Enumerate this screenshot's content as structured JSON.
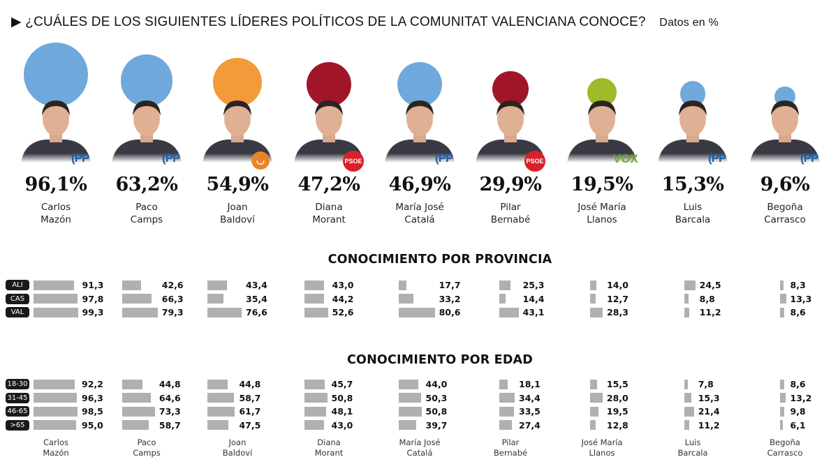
{
  "title": {
    "marker": "▶",
    "text": "¿CUÁLES DE LOS SIGUIENTES LÍDERES POLÍTICOS DE LA COMUNITAT VALENCIANA CONOCE?",
    "subtitle": "Datos en %"
  },
  "party_colors": {
    "PP": "#6fa8dc",
    "Compromis": "#f39a3a",
    "PSOE": "#a01628",
    "VOX": "#9dbb2a"
  },
  "chart_data": [
    {
      "type": "bubble",
      "title": "¿CUÁLES DE LOS SIGUIENTES LÍDERES POLÍTICOS DE LA COMUNITAT VALENCIANA CONOCE?",
      "unit": "%",
      "leaders": [
        {
          "first": "Carlos",
          "last": "Mazón",
          "party": "PP",
          "party_logo": "PP",
          "value": 96.1,
          "label": "96,1%"
        },
        {
          "first": "Paco",
          "last": "Camps",
          "party": "PP",
          "party_logo": "PP",
          "value": 63.2,
          "label": "63,2%"
        },
        {
          "first": "Joan",
          "last": "Baldoví",
          "party": "Compromis",
          "party_logo": "",
          "value": 54.9,
          "label": "54,9%"
        },
        {
          "first": "Diana",
          "last": "Morant",
          "party": "PSOE",
          "party_logo": "PSOE",
          "value": 47.2,
          "label": "47,2%"
        },
        {
          "first": "María José",
          "last": "Catalá",
          "party": "PP",
          "party_logo": "PP",
          "value": 46.9,
          "label": "46,9%"
        },
        {
          "first": "Pilar",
          "last": "Bernabé",
          "party": "PSOE",
          "party_logo": "PSOE",
          "value": 29.9,
          "label": "29,9%"
        },
        {
          "first": "José María",
          "last": "Llanos",
          "party": "VOX",
          "party_logo": "VOX",
          "value": 19.5,
          "label": "19,5%"
        },
        {
          "first": "Luis",
          "last": "Barcala",
          "party": "PP",
          "party_logo": "PP",
          "value": 15.3,
          "label": "15,3%"
        },
        {
          "first": "Begoña",
          "last": "Carrasco",
          "party": "PP",
          "party_logo": "PP",
          "value": 9.6,
          "label": "9,6%"
        }
      ]
    },
    {
      "type": "bar",
      "title": "CONOCIMIENTO POR PROVINCIA",
      "categories": [
        "ALI",
        "CAS",
        "VAL"
      ],
      "series": [
        {
          "values": [
            91.3,
            97.8,
            99.3
          ],
          "labels": [
            "91,3",
            "97,8",
            "99,3"
          ]
        },
        {
          "values": [
            42.6,
            66.3,
            79.3
          ],
          "labels": [
            "42,6",
            "66,3",
            "79,3"
          ]
        },
        {
          "values": [
            43.4,
            35.4,
            76.6
          ],
          "labels": [
            "43,4",
            "35,4",
            "76,6"
          ]
        },
        {
          "values": [
            43.0,
            44.2,
            52.6
          ],
          "labels": [
            "43,0",
            "44,2",
            "52,6"
          ]
        },
        {
          "values": [
            17.7,
            33.2,
            80.6
          ],
          "labels": [
            "17,7",
            "33,2",
            "80,6"
          ]
        },
        {
          "values": [
            25.3,
            14.4,
            43.1
          ],
          "labels": [
            "25,3",
            "14,4",
            "43,1"
          ]
        },
        {
          "values": [
            14.0,
            12.7,
            28.3
          ],
          "labels": [
            "14,0",
            "12,7",
            "28,3"
          ]
        },
        {
          "values": [
            24.5,
            8.8,
            11.2
          ],
          "labels": [
            "24,5",
            "8,8",
            "11,2"
          ]
        },
        {
          "values": [
            8.3,
            13.3,
            8.6
          ],
          "labels": [
            "8,3",
            "13,3",
            "8,6"
          ]
        }
      ]
    },
    {
      "type": "bar",
      "title": "CONOCIMIENTO POR EDAD",
      "categories": [
        "18-30",
        "31-45",
        "46-65",
        ">65"
      ],
      "series": [
        {
          "values": [
            92.2,
            96.3,
            98.5,
            95.0
          ],
          "labels": [
            "92,2",
            "96,3",
            "98,5",
            "95,0"
          ]
        },
        {
          "values": [
            44.8,
            64.6,
            73.3,
            58.7
          ],
          "labels": [
            "44,8",
            "64,6",
            "73,3",
            "58,7"
          ]
        },
        {
          "values": [
            44.8,
            58.7,
            61.7,
            47.5
          ],
          "labels": [
            "44,8",
            "58,7",
            "61,7",
            "47,5"
          ]
        },
        {
          "values": [
            45.7,
            50.8,
            48.1,
            43.0
          ],
          "labels": [
            "45,7",
            "50,8",
            "48,1",
            "43,0"
          ]
        },
        {
          "values": [
            44.0,
            50.3,
            50.8,
            39.7
          ],
          "labels": [
            "44,0",
            "50,3",
            "50,8",
            "39,7"
          ]
        },
        {
          "values": [
            18.1,
            34.4,
            33.5,
            27.4
          ],
          "labels": [
            "18,1",
            "34,4",
            "33,5",
            "27,4"
          ]
        },
        {
          "values": [
            15.5,
            28.0,
            19.5,
            12.8
          ],
          "labels": [
            "15,5",
            "28,0",
            "19,5",
            "12,8"
          ]
        },
        {
          "values": [
            7.8,
            15.3,
            21.4,
            11.2
          ],
          "labels": [
            "7,8",
            "15,3",
            "21,4",
            "11,2"
          ]
        },
        {
          "values": [
            8.6,
            13.2,
            9.8,
            6.1
          ],
          "labels": [
            "8,6",
            "13,2",
            "9,8",
            "6,1"
          ]
        }
      ]
    }
  ]
}
